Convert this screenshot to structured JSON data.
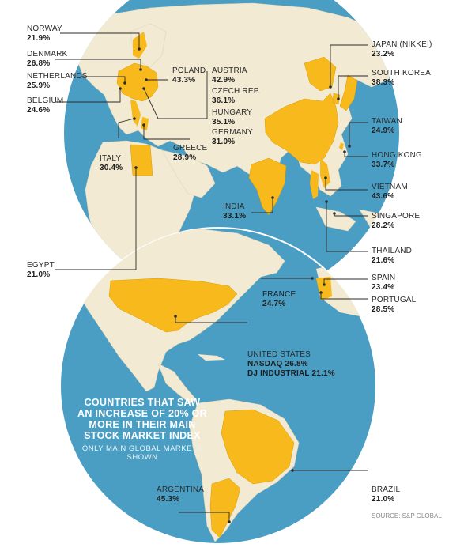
{
  "colors": {
    "ocean": "#4a9ec4",
    "land": "#f2ead3",
    "highlight": "#f7b91b",
    "leader": "#2b2b2b"
  },
  "title": {
    "heading": "COUNTRIES THAT SAW AN INCREASE OF 20% OR MORE IN THEIR MAIN STOCK MARKET INDEX",
    "subheading": "ONLY MAIN GLOBAL MARKETS SHOWN"
  },
  "source": "SOURCE: S&P GLOBAL",
  "countries": {
    "norway": {
      "name": "NORWAY",
      "value": "21.9%"
    },
    "denmark": {
      "name": "DENMARK",
      "value": "26.8%"
    },
    "netherlands": {
      "name": "NETHERLANDS",
      "value": "25.9%"
    },
    "belgium": {
      "name": "BELGIUM",
      "value": "24.6%"
    },
    "poland": {
      "name": "POLAND",
      "value": "43.3%"
    },
    "austria": {
      "name": "AUSTRIA",
      "value": "42.9%"
    },
    "czech": {
      "name": "CZECH REP.",
      "value": "36.1%"
    },
    "hungary": {
      "name": "HUNGARY",
      "value": "35.1%"
    },
    "germany": {
      "name": "GERMANY",
      "value": "31.0%"
    },
    "italy": {
      "name": "ITALY",
      "value": "30.4%"
    },
    "greece": {
      "name": "GREECE",
      "value": "28.9%"
    },
    "india": {
      "name": "INDIA",
      "value": "33.1%"
    },
    "egypt": {
      "name": "EGYPT",
      "value": "21.0%"
    },
    "japan": {
      "name": "JAPAN (NIKKEI)",
      "value": "23.2%"
    },
    "south_korea": {
      "name": "SOUTH KOREA",
      "value": "38.3%"
    },
    "taiwan": {
      "name": "TAIWAN",
      "value": "24.9%"
    },
    "hong_kong": {
      "name": "HONG KONG",
      "value": "33.7%"
    },
    "vietnam": {
      "name": "VIETNAM",
      "value": "43.6%"
    },
    "singapore": {
      "name": "SINGAPORE",
      "value": "28.2%"
    },
    "thailand": {
      "name": "THAILAND",
      "value": "21.6%"
    },
    "france": {
      "name": "FRANCE",
      "value": "24.7%"
    },
    "spain": {
      "name": "SPAIN",
      "value": "23.4%"
    },
    "portugal": {
      "name": "PORTUGAL",
      "value": "28.5%"
    },
    "united_states": {
      "name": "UNITED STATES",
      "nasdaq": "NASDAQ 26.8%",
      "dj": "DJ INDUSTRIAL 21.1%"
    },
    "argentina": {
      "name": "ARGENTINA",
      "value": "45.3%"
    },
    "brazil": {
      "name": "BRAZIL",
      "value": "21.0%"
    }
  }
}
